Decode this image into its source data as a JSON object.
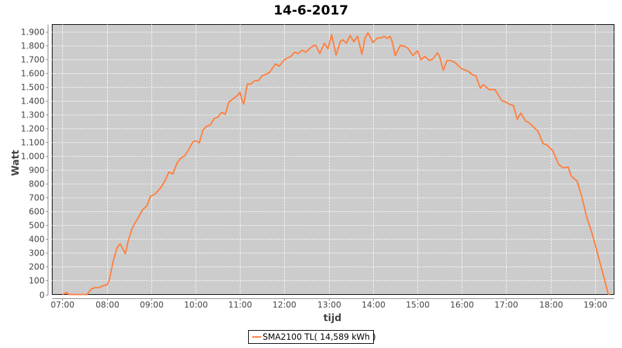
{
  "chart_data": {
    "type": "line",
    "title": "14-6-2017",
    "xlabel": "tijd",
    "ylabel": "Watt",
    "xlim": [
      "06:46",
      "19:26"
    ],
    "ylim": [
      0,
      1950
    ],
    "grid": true,
    "plot_background": "#cccccc",
    "legend_position": "bottom",
    "x_ticks": [
      "07:00",
      "08:00",
      "09:00",
      "10:00",
      "11:00",
      "12:00",
      "13:00",
      "14:00",
      "15:00",
      "16:00",
      "17:00",
      "18:00",
      "19:00"
    ],
    "y_ticks": [
      0,
      100,
      200,
      300,
      400,
      500,
      600,
      700,
      800,
      900,
      1000,
      1100,
      1200,
      1300,
      1400,
      1500,
      1600,
      1700,
      1800,
      1900
    ],
    "y_tick_labels": [
      "0",
      "100",
      "200",
      "300",
      "400",
      "500",
      "600",
      "700",
      "800",
      "900",
      "1.000",
      "1.100",
      "1.200",
      "1.300",
      "1.400",
      "1.500",
      "1.600",
      "1.700",
      "1.800",
      "1.900"
    ],
    "series": [
      {
        "name": "SMA2100 TL( 14,589 kWh )",
        "color": "#ff7f3f",
        "x": [
          "07:00",
          "07:05",
          "07:09",
          "07:33",
          "07:39",
          "07:44",
          "07:50",
          "07:55",
          "08:00",
          "08:03",
          "08:09",
          "08:14",
          "08:18",
          "08:21",
          "08:25",
          "08:29",
          "08:34",
          "08:39",
          "08:43",
          "08:48",
          "08:54",
          "08:59",
          "09:05",
          "09:12",
          "09:18",
          "09:24",
          "09:29",
          "09:35",
          "09:40",
          "09:45",
          "09:51",
          "09:56",
          "10:00",
          "10:05",
          "10:10",
          "10:15",
          "10:20",
          "10:25",
          "10:30",
          "10:35",
          "10:40",
          "10:45",
          "10:50",
          "10:55",
          "11:00",
          "11:03",
          "11:05",
          "11:10",
          "11:15",
          "11:20",
          "11:25",
          "11:30",
          "11:35",
          "11:40",
          "11:48",
          "11:53",
          "12:00",
          "12:05",
          "12:09",
          "12:14",
          "12:19",
          "12:24",
          "12:29",
          "12:34",
          "12:40",
          "12:43",
          "12:48",
          "12:54",
          "12:59",
          "13:04",
          "13:10",
          "13:16",
          "13:19",
          "13:24",
          "13:29",
          "13:34",
          "13:39",
          "13:45",
          "13:49",
          "13:53",
          "14:00",
          "14:05",
          "14:12",
          "14:15",
          "14:19",
          "14:23",
          "14:26",
          "14:30",
          "14:37",
          "14:44",
          "14:47",
          "14:54",
          "15:00",
          "15:05",
          "15:10",
          "15:16",
          "15:21",
          "15:27",
          "15:30",
          "15:35",
          "15:40",
          "15:45",
          "15:51",
          "16:00",
          "16:08",
          "16:15",
          "16:19",
          "16:25",
          "16:29",
          "16:37",
          "16:45",
          "16:54",
          "17:00",
          "17:04",
          "17:10",
          "17:15",
          "17:20",
          "17:26",
          "17:31",
          "17:37",
          "17:43",
          "17:50",
          "17:55",
          "18:03",
          "18:11",
          "18:17",
          "18:24",
          "18:28",
          "18:36",
          "18:43",
          "18:49",
          "18:56",
          "19:02",
          "19:08",
          "19:13",
          "19:18",
          "19:20"
        ],
        "values": [
          0,
          15,
          0,
          0,
          40,
          50,
          50,
          65,
          70,
          100,
          250,
          340,
          365,
          335,
          295,
          390,
          475,
          525,
          560,
          610,
          640,
          710,
          725,
          765,
          815,
          885,
          870,
          950,
          985,
          1000,
          1050,
          1100,
          1110,
          1095,
          1190,
          1215,
          1225,
          1270,
          1280,
          1315,
          1300,
          1390,
          1410,
          1430,
          1460,
          1400,
          1375,
          1520,
          1520,
          1545,
          1545,
          1580,
          1590,
          1605,
          1665,
          1650,
          1695,
          1710,
          1720,
          1750,
          1740,
          1765,
          1750,
          1775,
          1800,
          1797,
          1740,
          1815,
          1775,
          1875,
          1730,
          1830,
          1840,
          1815,
          1870,
          1825,
          1865,
          1735,
          1850,
          1890,
          1820,
          1850,
          1855,
          1865,
          1850,
          1865,
          1825,
          1725,
          1800,
          1790,
          1780,
          1725,
          1760,
          1695,
          1720,
          1690,
          1700,
          1745,
          1720,
          1620,
          1690,
          1690,
          1675,
          1630,
          1615,
          1585,
          1580,
          1490,
          1515,
          1480,
          1480,
          1400,
          1390,
          1375,
          1365,
          1265,
          1310,
          1255,
          1240,
          1210,
          1180,
          1090,
          1080,
          1040,
          940,
          915,
          920,
          855,
          820,
          695,
          560,
          445,
          330,
          210,
          110,
          5,
          0
        ]
      }
    ]
  }
}
